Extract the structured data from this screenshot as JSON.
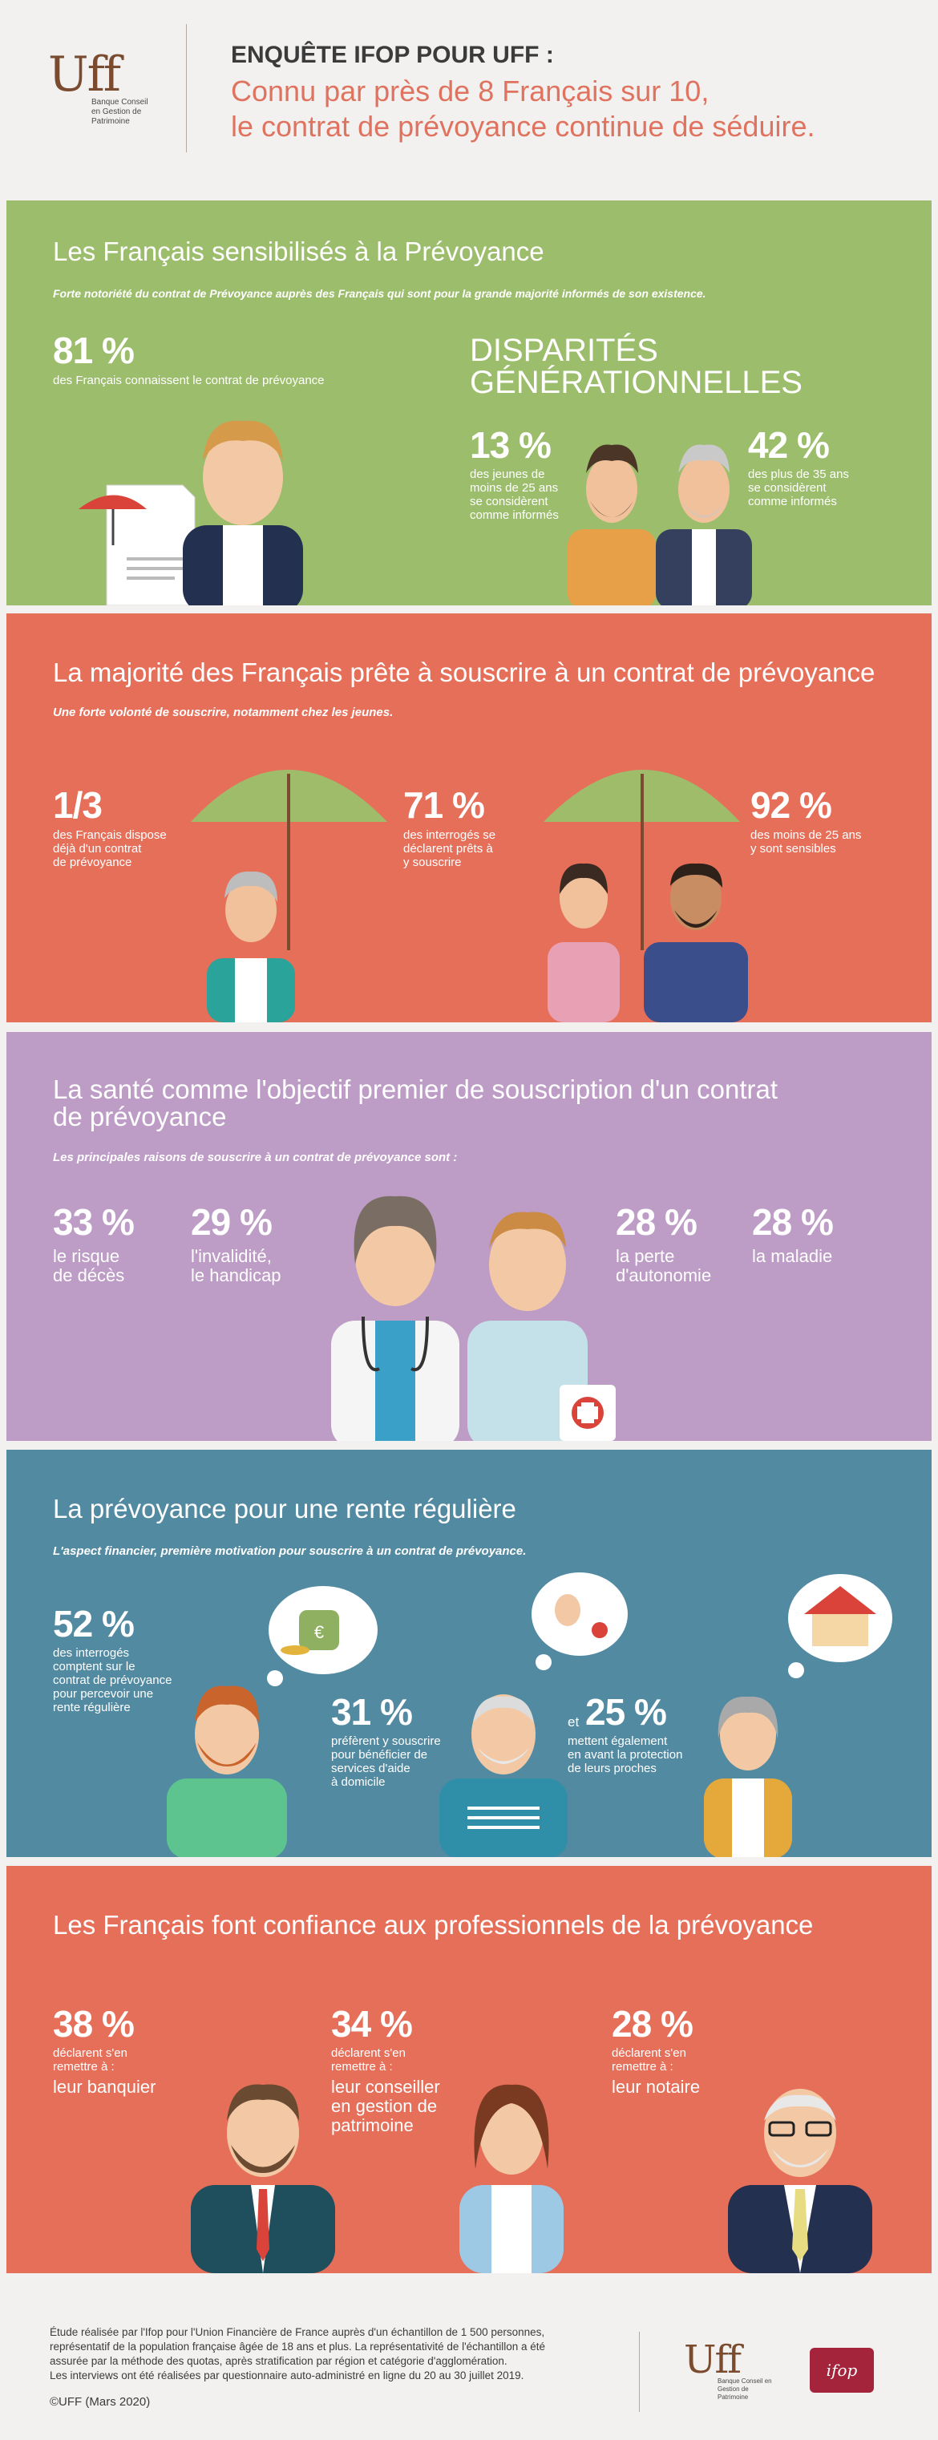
{
  "header": {
    "logo": "Uff",
    "logo_sub": "Banque Conseil en Gestion de Patrimoine",
    "kicker": "ENQUÊTE IFOP POUR UFF :",
    "title_line1": "Connu par près de 8 Français sur 10,",
    "title_line2": "le contrat de prévoyance continue de séduire."
  },
  "section1": {
    "title": "Les Français sensibilisés à la Prévoyance",
    "subtitle": "Forte notoriété du contrat de Prévoyance auprès des Français qui sont pour la grande majorité informés de son existence.",
    "stat1": {
      "pct": "81 %",
      "text": "des Français connaissent le contrat de prévoyance"
    },
    "disparites_l1": "DISPARITÉS",
    "disparites_l2": "GÉNÉRATIONNELLES",
    "stat2": {
      "pct": "13 %",
      "l1": "des jeunes de",
      "l2": "moins de 25 ans",
      "l3": "se considèrent",
      "l4": "comme informés"
    },
    "stat3": {
      "pct": "42 %",
      "l1": "des plus de 35 ans",
      "l2": "se considèrent",
      "l3": "comme informés"
    }
  },
  "section2": {
    "title": "La majorité des Français prête à souscrire à un contrat de prévoyance",
    "subtitle": "Une forte volonté de souscrire, notamment chez les jeunes.",
    "stat1": {
      "pct": "1/3",
      "l1": "des Français dispose",
      "l2": "déjà d'un contrat",
      "l3": "de prévoyance"
    },
    "stat2": {
      "pct": "71 %",
      "l1": "des interrogés se",
      "l2": "déclarent prêts à",
      "l3": "y souscrire"
    },
    "stat3": {
      "pct": "92 %",
      "l1": "des moins de 25 ans",
      "l2": "y sont sensibles"
    }
  },
  "section3": {
    "title_l1": "La santé comme l'objectif premier de souscription d'un contrat",
    "title_l2": "de prévoyance",
    "subtitle": "Les principales raisons de souscrire à un contrat de prévoyance sont :",
    "stat1": {
      "pct": "33 %",
      "l1": "le risque",
      "l2": "de décès"
    },
    "stat2": {
      "pct": "29 %",
      "l1": "l'invalidité,",
      "l2": "le handicap"
    },
    "stat3": {
      "pct": "28 %",
      "l1": "la perte",
      "l2": "d'autonomie"
    },
    "stat4": {
      "pct": "28 %",
      "l1": "la maladie"
    }
  },
  "section4": {
    "title": "La prévoyance pour une rente régulière",
    "subtitle": "L'aspect financier, première motivation pour souscrire à un contrat de prévoyance.",
    "stat1": {
      "pct": "52 %",
      "l1": "des interrogés",
      "l2": "comptent sur le",
      "l3": "contrat de prévoyance",
      "l4": "pour percevoir une",
      "l5": "rente régulière"
    },
    "stat2": {
      "pct": "31 %",
      "l1": "préfèrent y souscrire",
      "l2": "pour bénéficier de",
      "l3": "services d'aide",
      "l4": "à domicile"
    },
    "stat3": {
      "prefix": "et",
      "pct": "25 %",
      "l1": "mettent également",
      "l2": "en avant la protection",
      "l3": "de leurs proches"
    }
  },
  "section5": {
    "title": "Les Français font confiance aux professionnels de la prévoyance",
    "stat1": {
      "pct": "38 %",
      "l1": "déclarent s'en",
      "l2": "remettre à :",
      "b1": "leur banquier"
    },
    "stat2": {
      "pct": "34 %",
      "l1": "déclarent s'en",
      "l2": "remettre à :",
      "b1": "leur conseiller",
      "b2": "en gestion de",
      "b3": "patrimoine"
    },
    "stat3": {
      "pct": "28 %",
      "l1": "déclarent s'en",
      "l2": "remettre à :",
      "b1": "leur notaire"
    }
  },
  "footer": {
    "l1": "Étude réalisée par l'Ifop pour l'Union Financière de France auprès d'un échantillon de 1 500 personnes,",
    "l2": "représentatif de la population française âgée de 18 ans et plus. La représentativité de l'échantillon a été",
    "l3": "assurée par la méthode des quotas, après stratification par région et catégorie d'agglomération.",
    "l4": "Les interviews ont été réalisées par questionnaire auto-administré en ligne du 20 au 30 juillet 2019.",
    "copyright": "©UFF (Mars 2020)",
    "ifop": "ifop"
  },
  "colors": {
    "green": "#9cbd6c",
    "coral": "#e66f5a",
    "purple": "#bd9cc6",
    "teal": "#528aa1",
    "accent": "#e0735f"
  }
}
